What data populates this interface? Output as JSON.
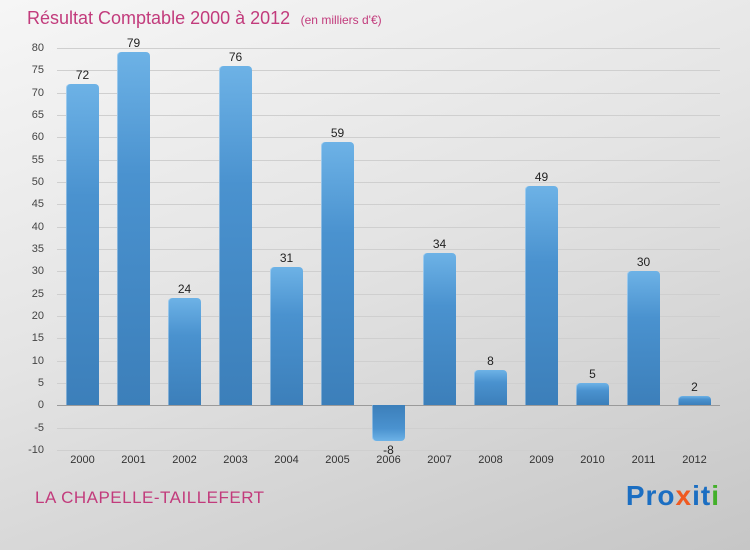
{
  "header": {
    "title": "Résultat Comptable 2000 à 2012",
    "subtitle": "(en milliers d'€)"
  },
  "footer": {
    "name": "LA CHAPELLE-TAILLEFERT"
  },
  "logo": {
    "letters": [
      {
        "ch": "P",
        "color": "#1b6ec2"
      },
      {
        "ch": "r",
        "color": "#1b6ec2"
      },
      {
        "ch": "o",
        "color": "#1b6ec2"
      },
      {
        "ch": "x",
        "color": "#ef5a21"
      },
      {
        "ch": "i",
        "color": "#1b6ec2"
      },
      {
        "ch": "t",
        "color": "#1b6ec2"
      },
      {
        "ch": "i",
        "color": "#43b02a"
      }
    ]
  },
  "colors": {
    "title": "#c23b7c",
    "bar_top": "#6db2e6",
    "bar_bottom": "#3c7fba",
    "grid": "#cfcfcf",
    "zero_line": "#9a9a9a"
  },
  "chart_data": {
    "type": "bar",
    "categories": [
      "2000",
      "2001",
      "2002",
      "2003",
      "2004",
      "2005",
      "2006",
      "2007",
      "2008",
      "2009",
      "2010",
      "2011",
      "2012"
    ],
    "values": [
      72,
      79,
      24,
      76,
      31,
      59,
      -8,
      34,
      8,
      49,
      5,
      30,
      2
    ],
    "title": "Résultat Comptable 2000 à 2012",
    "xlabel": "",
    "ylabel": "",
    "ylim": [
      -10,
      80
    ],
    "ytick_step": 5,
    "grid": true,
    "legend": false,
    "value_labels": true
  }
}
